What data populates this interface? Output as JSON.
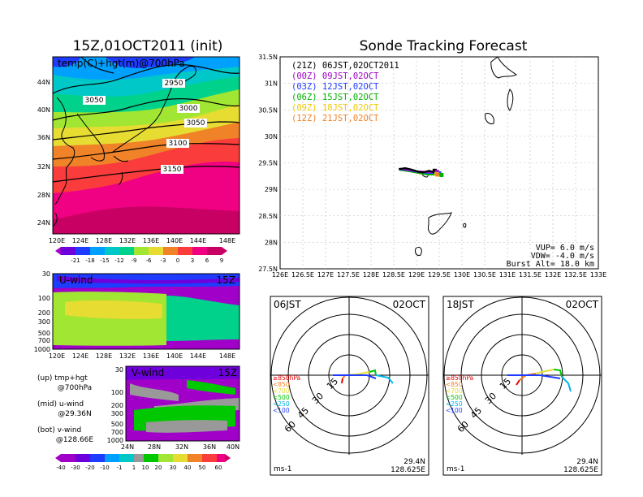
{
  "titles": {
    "left_title": "15Z,01OCT2011 (init)",
    "right_title": "Sonde Tracking Forecast"
  },
  "upper_map": {
    "label": "temp(C)+hgt(m)@700hPa",
    "x_ticks": [
      "120E",
      "124E",
      "128E",
      "132E",
      "136E",
      "140E",
      "144E",
      "148E"
    ],
    "y_ticks": [
      "44N",
      "40N",
      "36N",
      "32N",
      "28N",
      "24N"
    ],
    "contour_labels": [
      "2950",
      "3050",
      "3000",
      "3050",
      "3100",
      "3150"
    ],
    "colorbar": [
      "-21",
      "-18",
      "-15",
      "-12",
      "-9",
      "-6",
      "-3",
      "0",
      "3",
      "6",
      "9"
    ],
    "colorbar_colors": [
      "#a000c8",
      "#6e00dc",
      "#1e3cff",
      "#00a0ff",
      "#00c8c8",
      "#00d28c",
      "#a0e632",
      "#e6dc32",
      "#f08228",
      "#fa3c3c",
      "#f00082",
      "#c80064"
    ]
  },
  "u_wind": {
    "label": "U-wind",
    "time": "15Z",
    "y_ticks": [
      "30",
      "100",
      "200",
      "300",
      "500",
      "700",
      "1000"
    ],
    "x_ticks": [
      "120E",
      "124E",
      "128E",
      "132E",
      "136E",
      "140E",
      "144E",
      "148E"
    ]
  },
  "v_wind": {
    "label": "V-wind",
    "time": "15Z",
    "y_ticks": [
      "30",
      "100",
      "200",
      "300",
      "500",
      "700",
      "1000"
    ],
    "x_ticks": [
      "24N",
      "28N",
      "32N",
      "36N",
      "40N"
    ],
    "colorbar": [
      "-40",
      "-30",
      "-20",
      "-10",
      "-1",
      "1",
      "10",
      "20",
      "30",
      "40",
      "50",
      "60"
    ]
  },
  "legend_notes": [
    {
      "head": "(up) tmp+hgt",
      "sub": "@700hPa"
    },
    {
      "head": "(mid) u-wind",
      "sub": "@29.36N"
    },
    {
      "head": "(bot) v-wind",
      "sub": "@128.66E"
    }
  ],
  "tracking": {
    "series_labels": [
      {
        "text": "(21Z) 06JST,02OCT2011",
        "color": "#000000"
      },
      {
        "text": "(00Z) 09JST,02OCT",
        "color": "#a000c8"
      },
      {
        "text": "(03Z) 12JST,02OCT",
        "color": "#1e3cff"
      },
      {
        "text": "(06Z) 15JST,02OCT",
        "color": "#00b400"
      },
      {
        "text": "(09Z) 18JST,02OCT",
        "color": "#f0c800"
      },
      {
        "text": "(12Z) 21JST,02OCT",
        "color": "#f08228"
      }
    ],
    "info": [
      "VUP= 6.0 m/s",
      "VDW= -4.0 m/s",
      "Burst Alt= 18.0 km"
    ]
  },
  "polar_left": {
    "time_label": "06JST",
    "date_label": "02OCT",
    "lat": "29.4N",
    "lon": "128.625E",
    "unit": "ms-1"
  },
  "polar_right": {
    "time_label": "18JST",
    "date_label": "02OCT",
    "lat": "29.4N",
    "lon": "128.625E",
    "unit": "ms-1"
  },
  "polar_levels": [
    {
      "text": "≥850hPa",
      "color": "#e60000"
    },
    {
      "text": "<850",
      "color": "#f08228"
    },
    {
      "text": "<700",
      "color": "#e6dc32"
    },
    {
      "text": "<500",
      "color": "#00c800"
    },
    {
      "text": "<250",
      "color": "#00b4e6"
    },
    {
      "text": "<100",
      "color": "#1e3cff"
    }
  ],
  "polar_ring_labels": [
    "15",
    "30",
    "45",
    "60"
  ],
  "chart_data": {
    "type": "line",
    "title": "Sonde Tracking Forecast",
    "x_ticks": [
      "126E",
      "126.5E",
      "127E",
      "127.5E",
      "128E",
      "128.5E",
      "129E",
      "129.5E",
      "130E",
      "130.5E",
      "131E",
      "131.5E",
      "132E",
      "132.5E",
      "133E"
    ],
    "y_ticks": [
      "31.5N",
      "31N",
      "30.5N",
      "30N",
      "29.5N",
      "29N",
      "28.5N",
      "28N",
      "27.5N"
    ],
    "xlim": [
      126,
      133
    ],
    "ylim": [
      27.5,
      31.5
    ],
    "grid": true,
    "legend_placement": "top-left",
    "series": [
      {
        "name": "(21Z) 06JST,02OCT2011",
        "color": "#000000",
        "x": [
          128.61,
          128.75,
          128.9,
          129.05,
          129.15,
          129.28,
          129.35,
          129.4
        ],
        "y": [
          29.38,
          29.4,
          29.37,
          29.33,
          29.32,
          29.35,
          29.33,
          29.35
        ]
      },
      {
        "name": "(00Z) 09JST,02OCT",
        "color": "#a000c8",
        "x": [
          128.62,
          128.8,
          129.0,
          129.2,
          129.35,
          129.45
        ],
        "y": [
          29.39,
          29.37,
          29.34,
          29.33,
          29.32,
          29.33
        ]
      },
      {
        "name": "(03Z) 12JST,02OCT",
        "color": "#1e3cff",
        "x": [
          128.62,
          128.82,
          129.02,
          129.22,
          129.38,
          129.5
        ],
        "y": [
          29.38,
          29.36,
          29.33,
          29.31,
          29.31,
          29.3
        ]
      },
      {
        "name": "(06Z) 15JST,02OCT",
        "color": "#00b400",
        "x": [
          128.62,
          128.85,
          129.05,
          129.25,
          129.42,
          129.55
        ],
        "y": [
          29.37,
          29.34,
          29.31,
          29.28,
          29.28,
          29.27
        ]
      },
      {
        "name": "(09Z) 18JST,02OCT",
        "color": "#f0c800",
        "x": [
          128.63,
          128.86,
          129.06,
          129.26,
          129.44
        ],
        "y": [
          29.37,
          29.34,
          29.31,
          29.29,
          29.29
        ]
      },
      {
        "name": "(12Z) 21JST,02OCT",
        "color": "#f08228",
        "x": [
          128.63,
          128.88,
          129.08,
          129.28,
          129.46
        ],
        "y": [
          29.37,
          29.34,
          29.3,
          29.28,
          29.28
        ]
      }
    ]
  }
}
